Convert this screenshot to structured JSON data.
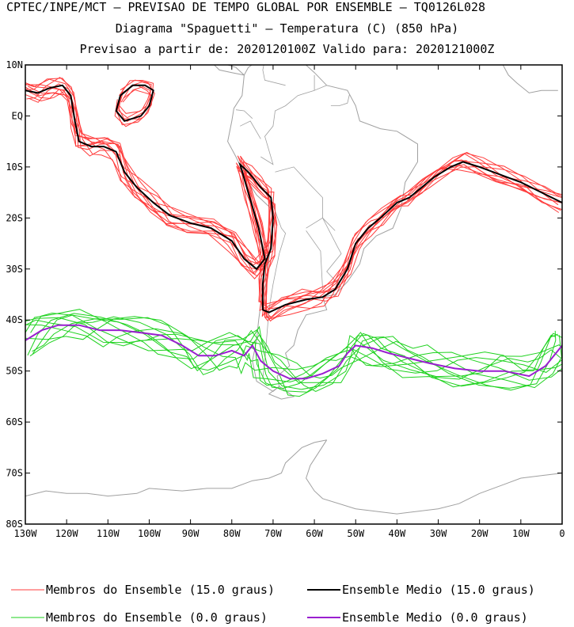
{
  "header": {
    "line1": "CPTEC/INPE/MCT — PREVISAO DE TEMPO GLOBAL POR ENSEMBLE — TQ0126L028",
    "line2": "Diagrama \"Spaguetti\" — Temperatura (C) (850 hPa)",
    "line3": "Previsao a partir de: 2020120100Z  Valido para: 2020121000Z"
  },
  "map": {
    "lon_range": [
      -130,
      0
    ],
    "lat_range": [
      -80,
      10
    ],
    "lat_labels": [
      "10N",
      "EQ",
      "10S",
      "20S",
      "30S",
      "40S",
      "50S",
      "60S",
      "70S",
      "80S"
    ],
    "lon_labels": [
      "130W",
      "120W",
      "110W",
      "100W",
      "90W",
      "80W",
      "70W",
      "60W",
      "50W",
      "40W",
      "30W",
      "20W",
      "10W",
      "0"
    ],
    "coastline_color": "#a0a0a0"
  },
  "contours": {
    "members_15": {
      "color": "#ff3c3c",
      "count": 10
    },
    "mean_15": {
      "color": "#000000"
    },
    "members_0": {
      "color": "#1ed21e",
      "count": 10
    },
    "mean_0": {
      "color": "#9a1fd0"
    }
  },
  "legend": {
    "members_15_label": "Membros do Ensemble (15.0 graus)",
    "mean_15_label": "Ensemble Medio (15.0 graus)",
    "members_0_label": "Membros do Ensemble (0.0 graus)",
    "mean_0_label": "Ensemble Medio (0.0 graus)"
  }
}
